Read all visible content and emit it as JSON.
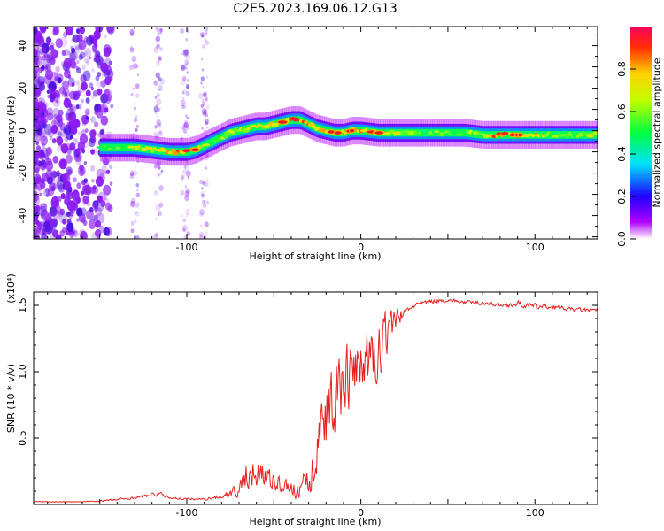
{
  "title": "C2E5.2023.169.06.12.G13",
  "colors": {
    "snr_line": "#e8201e",
    "frame": "#000000"
  },
  "chart_data": [
    {
      "type": "heatmap",
      "title": "C2E5.2023.169.06.12.G13",
      "xlabel": "Height of straight line (km)",
      "ylabel": "Frequency (Hz)",
      "xlim": [
        -188,
        136
      ],
      "ylim": [
        -51,
        49
      ],
      "x_ticks": [
        -100,
        0,
        100
      ],
      "y_ticks": [
        -40,
        -20,
        0,
        20,
        40
      ],
      "colormap": "rainbow",
      "colorbar": {
        "label": "Normalized spectral amplitude",
        "range": [
          0,
          1
        ],
        "ticks": [
          "0.0",
          "0.2",
          "0.4",
          "0.6",
          "0.8"
        ]
      },
      "ridge": {
        "x": [
          -150,
          -140,
          -130,
          -120,
          -110,
          -100,
          -95,
          -90,
          -85,
          -80,
          -75,
          -70,
          -65,
          -60,
          -55,
          -50,
          -45,
          -40,
          -35,
          -30,
          -25,
          -20,
          -15,
          -10,
          -5,
          0,
          10,
          20,
          30,
          40,
          50,
          60,
          70,
          80,
          90,
          100,
          110,
          120,
          130,
          136
        ],
        "freq": [
          -8,
          -8,
          -8,
          -9,
          -10,
          -10,
          -9,
          -7,
          -5,
          -3,
          -1,
          0,
          1,
          2,
          2,
          3,
          4,
          5,
          5,
          3,
          1,
          0,
          -1,
          -1,
          0,
          0,
          -1,
          -1,
          -1,
          -1,
          -1,
          -1,
          -2,
          -2,
          -2,
          -2,
          -2,
          -2,
          -2,
          -2
        ],
        "amplitude": [
          0.55,
          0.6,
          0.7,
          0.75,
          0.85,
          0.95,
          0.8,
          0.7,
          0.6,
          0.65,
          0.7,
          0.72,
          0.75,
          0.75,
          0.78,
          0.8,
          0.85,
          0.95,
          0.92,
          0.85,
          0.8,
          0.9,
          0.8,
          0.75,
          0.95,
          0.9,
          0.85,
          0.75,
          0.65,
          0.6,
          0.6,
          0.62,
          0.75,
          0.95,
          0.85,
          0.8,
          0.65,
          0.6,
          0.7,
          0.75
        ]
      },
      "noise_region_x": [
        -188,
        -85
      ]
    },
    {
      "type": "line",
      "xlabel": "Height of straight line (km)",
      "ylabel": "SNR (10 * v/v)",
      "y_scale_label": "(x10⁴)",
      "xlim": [
        -188,
        136
      ],
      "ylim": [
        0,
        1.6
      ],
      "x_ticks": [
        -100,
        0,
        100
      ],
      "y_ticks": [
        0.5,
        1.0,
        1.5
      ],
      "y_tick_labels": [
        "0.5",
        "1.0",
        "1.5"
      ],
      "series": [
        {
          "x": [
            -188,
            -160,
            -145,
            -130,
            -116,
            -110,
            -100,
            -90,
            -80,
            -70,
            -65,
            -60,
            -55,
            -50,
            -45,
            -40,
            -35,
            -30,
            -25,
            -20,
            -15,
            -10,
            -5,
            0,
            5,
            10,
            15,
            20,
            25,
            30,
            40,
            50,
            60,
            70,
            80,
            90,
            100,
            110,
            120,
            136
          ],
          "y": [
            0.02,
            0.02,
            0.03,
            0.05,
            0.08,
            0.05,
            0.04,
            0.04,
            0.06,
            0.12,
            0.22,
            0.28,
            0.2,
            0.18,
            0.15,
            0.12,
            0.1,
            0.18,
            0.45,
            0.7,
            0.82,
            0.95,
            0.98,
            1.05,
            1.08,
            1.1,
            1.28,
            1.38,
            1.45,
            1.5,
            1.53,
            1.54,
            1.52,
            1.52,
            1.5,
            1.51,
            1.49,
            1.49,
            1.47,
            1.46
          ],
          "noise": [
            0.004,
            0.004,
            0.01,
            0.01,
            0.02,
            0.01,
            0.01,
            0.01,
            0.02,
            0.06,
            0.14,
            0.14,
            0.1,
            0.08,
            0.06,
            0.06,
            0.08,
            0.15,
            0.2,
            0.3,
            0.3,
            0.3,
            0.25,
            0.25,
            0.25,
            0.25,
            0.2,
            0.1,
            0.04,
            0.03,
            0.02,
            0.02,
            0.02,
            0.02,
            0.02,
            0.03,
            0.03,
            0.02,
            0.02,
            0.02
          ]
        }
      ]
    }
  ]
}
